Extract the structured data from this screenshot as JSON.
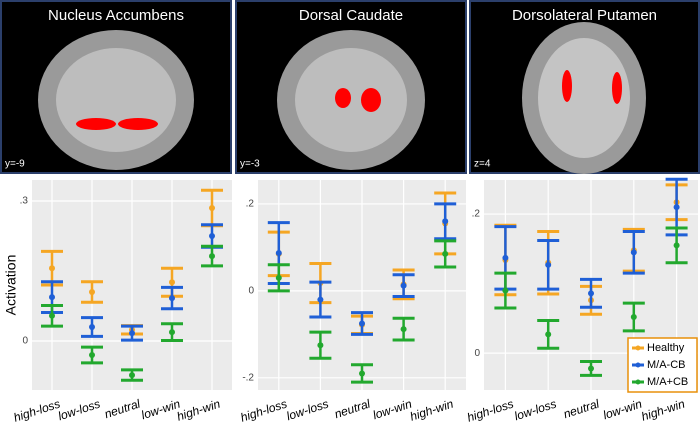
{
  "chart_data": [
    {
      "type": "errorbar",
      "title": "Nucleus Accumbens",
      "annotation": "y=-9",
      "ylabel": "Activation",
      "categories": [
        "high-loss",
        "low-loss",
        "neutral",
        "low-win",
        "high-win"
      ],
      "ylim": [
        -0.105,
        0.345
      ],
      "yticks": [
        0,
        {
          "value": 0.3,
          "label": ".3"
        }
      ],
      "grid": true,
      "series": [
        {
          "color": "#f5a623",
          "values": [
            0.156,
            0.105,
            0.024,
            0.126,
            0.285
          ],
          "errors": [
            0.036,
            0.022,
            0.009,
            0.03,
            0.038
          ]
        },
        {
          "color": "#1f5fd6",
          "values": [
            0.094,
            0.03,
            0.017,
            0.092,
            0.225
          ],
          "errors": [
            0.033,
            0.02,
            0.015,
            0.023,
            0.024
          ]
        },
        {
          "color": "#22a82e",
          "values": [
            0.054,
            -0.03,
            -0.073,
            0.019,
            0.182
          ],
          "errors": [
            0.022,
            0.017,
            0.011,
            0.018,
            0.021
          ]
        }
      ]
    },
    {
      "type": "errorbar",
      "title": "Dorsal Caudate",
      "annotation": "y=-3",
      "categories": [
        "high-loss",
        "low-loss",
        "neutral",
        "low-win",
        "high-win"
      ],
      "ylim": [
        -0.228,
        0.255
      ],
      "yticks": [
        {
          "value": -0.2,
          "label": "-.2"
        },
        0,
        {
          "value": 0.2,
          "label": ".2"
        }
      ],
      "grid": true,
      "series": [
        {
          "color": "#f5a623",
          "values": [
            0.085,
            0.018,
            -0.078,
            0.015,
            0.155
          ],
          "errors": [
            0.05,
            0.045,
            0.02,
            0.033,
            0.07
          ]
        },
        {
          "color": "#1f5fd6",
          "values": [
            0.087,
            -0.02,
            -0.075,
            0.012,
            0.16
          ],
          "errors": [
            0.07,
            0.04,
            0.025,
            0.025,
            0.04
          ]
        },
        {
          "color": "#22a82e",
          "values": [
            0.03,
            -0.125,
            -0.19,
            -0.088,
            0.085
          ],
          "errors": [
            0.03,
            0.03,
            0.02,
            0.025,
            0.03
          ]
        }
      ]
    },
    {
      "type": "errorbar",
      "title": "Dorsolateral Putamen",
      "annotation": "z=4",
      "categories": [
        "high-loss",
        "low-loss",
        "neutral",
        "low-win",
        "high-win"
      ],
      "ylim": [
        -0.053,
        0.249
      ],
      "yticks": [
        0,
        {
          "value": 0.2,
          "label": ".2"
        }
      ],
      "grid": true,
      "legend": "bottom-right",
      "series": [
        {
          "name": "Healthy",
          "color": "#f5a623",
          "values": [
            0.134,
            0.13,
            0.076,
            0.148,
            0.217
          ],
          "errors": [
            0.05,
            0.045,
            0.02,
            0.03,
            0.025
          ]
        },
        {
          "name": "M/A-CB",
          "color": "#1f5fd6",
          "values": [
            0.137,
            0.127,
            0.086,
            0.145,
            0.21
          ],
          "errors": [
            0.045,
            0.035,
            0.02,
            0.03,
            0.04
          ]
        },
        {
          "name": "M/A+CB",
          "color": "#22a82e",
          "values": [
            0.09,
            0.027,
            -0.022,
            0.052,
            0.155
          ],
          "errors": [
            0.025,
            0.02,
            0.01,
            0.02,
            0.025
          ]
        }
      ]
    }
  ]
}
